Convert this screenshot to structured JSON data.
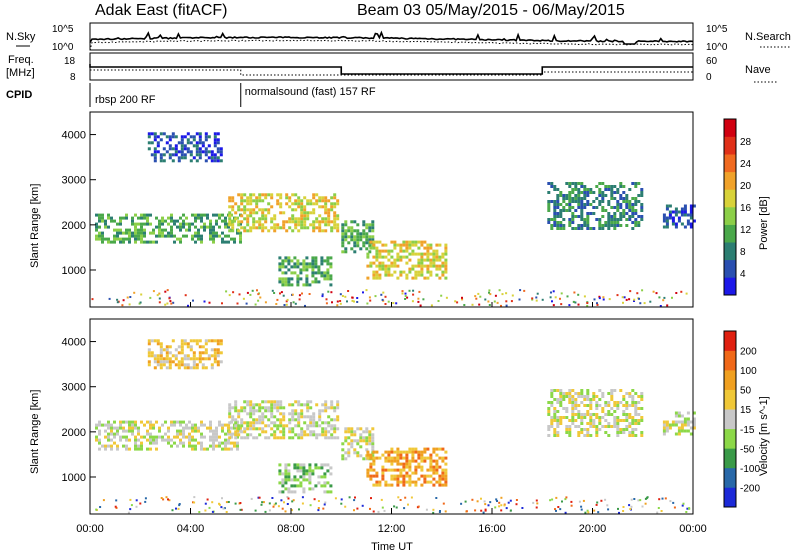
{
  "header": {
    "station": "Adak East (fitACF)",
    "beam_info": "Beam 03 05/May/2015 - 06/May/2015"
  },
  "noise_panel": {
    "left_label": "N.Sky",
    "right_label": "N.Search",
    "left_ticks": [
      "10^5",
      "10^0"
    ],
    "right_ticks": [
      "10^5",
      "10^0"
    ]
  },
  "freq_panel": {
    "left_label_1": "Freq.",
    "left_label_2": "[MHz]",
    "right_label": "Nave",
    "left_ticks": [
      "18",
      "8"
    ],
    "right_ticks": [
      "60",
      "0"
    ]
  },
  "cpid_panel": {
    "label": "CPID",
    "modes": [
      {
        "name": "rbsp 200 RF",
        "start_hour": 0,
        "end_hour": 6.0
      },
      {
        "name": "normalsound (fast) 157 RF",
        "start_hour": 6.0,
        "end_hour": 24
      }
    ]
  },
  "chart_data": [
    {
      "type": "heatmap",
      "parameter": "power",
      "ylabel": "Slant Range [km]",
      "xlabel": "Time UT",
      "xlim": [
        0,
        24
      ],
      "ylim": [
        180,
        4500
      ],
      "y_ticks": [
        1000,
        2000,
        3000,
        4000
      ],
      "x_ticks": [
        "00:00",
        "04:00",
        "08:00",
        "12:00",
        "16:00",
        "20:00",
        "00:00"
      ],
      "colorbar": {
        "label": "Power [dB]",
        "ticks": [
          "28",
          "24",
          "20",
          "16",
          "12",
          "8",
          "4"
        ],
        "colors": [
          "#1c18e8",
          "#2a4fb0",
          "#2c7e72",
          "#4aa84a",
          "#8ccf48",
          "#d8d23a",
          "#f0a22a",
          "#f06a20",
          "#e03018",
          "#d00010"
        ]
      },
      "echo_regions": [
        {
          "t0": 0.2,
          "t1": 6.0,
          "r0": 1650,
          "r1": 2250,
          "level": 3
        },
        {
          "t0": 2.3,
          "t1": 5.2,
          "r0": 3400,
          "r1": 4050,
          "level": 1
        },
        {
          "t0": 5.5,
          "t1": 9.8,
          "r0": 1850,
          "r1": 2700,
          "level": 5
        },
        {
          "t0": 7.5,
          "t1": 9.6,
          "r0": 650,
          "r1": 1300,
          "level": 3
        },
        {
          "t0": 10.0,
          "t1": 11.2,
          "r0": 1400,
          "r1": 2100,
          "level": 3
        },
        {
          "t0": 11.0,
          "t1": 14.2,
          "r0": 800,
          "r1": 1650,
          "level": 5
        },
        {
          "t0": 18.2,
          "t1": 22.0,
          "r0": 1900,
          "r1": 2950,
          "level": 2
        },
        {
          "t0": 22.8,
          "t1": 24.0,
          "r0": 1950,
          "r1": 2450,
          "level": 1
        }
      ]
    },
    {
      "type": "heatmap",
      "parameter": "velocity",
      "ylabel": "Slant Range [km]",
      "xlabel": "Time UT",
      "xlim": [
        0,
        24
      ],
      "ylim": [
        180,
        4500
      ],
      "y_ticks": [
        1000,
        2000,
        3000,
        4000
      ],
      "x_ticks": [
        "00:00",
        "04:00",
        "08:00",
        "12:00",
        "16:00",
        "20:00",
        "00:00"
      ],
      "colorbar": {
        "label": "Velocity [m s^-1]",
        "ticks": [
          "200",
          "100",
          "50",
          "15",
          "-15",
          "-50",
          "-100",
          "-200"
        ],
        "colors": [
          "#1c2ad8",
          "#2868a8",
          "#3a9a48",
          "#8cd848",
          "#c8c8c8",
          "#f0c838",
          "#f0a020",
          "#f06818",
          "#e02010"
        ]
      },
      "echo_regions": [
        {
          "t0": 0.2,
          "t1": 6.0,
          "r0": 1650,
          "r1": 2250,
          "level": 4
        },
        {
          "t0": 2.3,
          "t1": 5.2,
          "r0": 3400,
          "r1": 4050,
          "level": 5
        },
        {
          "t0": 5.5,
          "t1": 9.8,
          "r0": 1850,
          "r1": 2700,
          "level": 4
        },
        {
          "t0": 7.5,
          "t1": 9.6,
          "r0": 650,
          "r1": 1300,
          "level": 3
        },
        {
          "t0": 10.0,
          "t1": 11.2,
          "r0": 1400,
          "r1": 2100,
          "level": 4
        },
        {
          "t0": 11.0,
          "t1": 14.2,
          "r0": 800,
          "r1": 1650,
          "level": 6
        },
        {
          "t0": 18.2,
          "t1": 22.0,
          "r0": 1900,
          "r1": 2950,
          "level": 4
        },
        {
          "t0": 22.8,
          "t1": 24.0,
          "r0": 1950,
          "r1": 2450,
          "level": 4
        }
      ]
    }
  ]
}
